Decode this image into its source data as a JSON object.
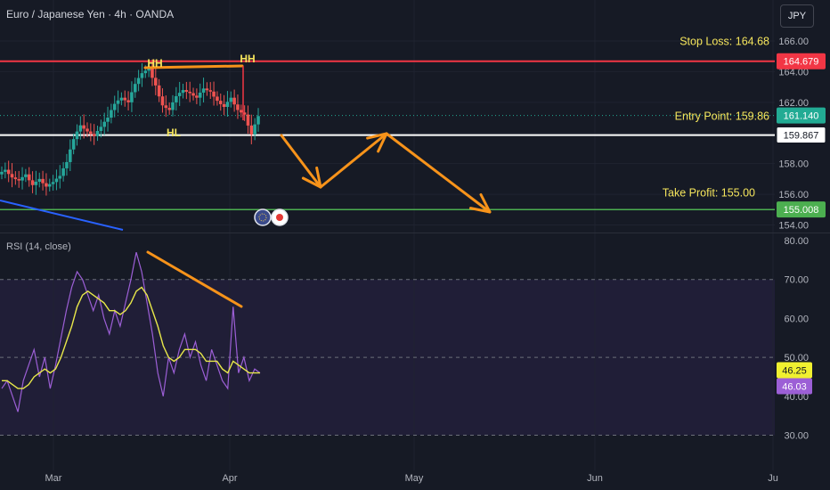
{
  "header": {
    "symbol_title": "Euro / Japanese Yen · 4h · OANDA",
    "currency_button": "JPY"
  },
  "price_pane": {
    "stop_loss_label": "Stop Loss: 164.68",
    "entry_label": "Entry Point: 159.86",
    "take_profit_label": "Take Profit: 155.00",
    "pattern_labels": [
      "HH",
      "HH",
      "HL"
    ]
  },
  "rsi_pane": {
    "title": "RSI (14, close)"
  },
  "colors": {
    "background": "#161a25",
    "stop_loss": "#f23645",
    "entry": "#ffffff",
    "take_profit": "#4caf50",
    "annotation": "#f7931a",
    "label_text": "#f5e55c",
    "rsi_line": "#9c5fd6",
    "rsi_ma": "#e8e84a",
    "current_price": "#22ab94",
    "trendline": "#2962ff"
  },
  "chart_data": [
    {
      "type": "candlestick",
      "title": "Euro / Japanese Yen · 4h · OANDA",
      "x_ticks": [
        "Mar",
        "Apr",
        "May",
        "Jun",
        "Ju"
      ],
      "y_ticks": [
        154.0,
        156.0,
        158.0,
        160.0,
        162.0,
        164.0,
        166.0
      ],
      "ylim": [
        153.5,
        167.4
      ],
      "price_tags": [
        {
          "label": "164.679",
          "value": 164.679,
          "color": "#f23645"
        },
        {
          "label": "161.140",
          "value": 161.14,
          "color": "#22ab94"
        },
        {
          "label": "159.867",
          "value": 159.867,
          "color": "#ffffff"
        },
        {
          "label": "155.008",
          "value": 155.008,
          "color": "#4caf50"
        }
      ],
      "levels": {
        "stop_loss": 164.68,
        "entry": 159.86,
        "take_profit": 155.0
      },
      "candles_close_approx": [
        157.6,
        157.1,
        156.9,
        157.3,
        156.6,
        157.0,
        156.5,
        156.8,
        157.2,
        158.1,
        159.6,
        160.5,
        160.1,
        159.8,
        160.4,
        161.0,
        161.9,
        162.3,
        162.0,
        163.2,
        163.9,
        164.2,
        163.1,
        161.8,
        161.5,
        162.4,
        162.8,
        162.6,
        162.3,
        162.9,
        162.7,
        162.1,
        161.7,
        162.3,
        161.5,
        161.2,
        159.9,
        161.1
      ],
      "projection_path": [
        {
          "date": "Apr 7",
          "price": 159.9
        },
        {
          "date": "Apr 14",
          "price": 156.6
        },
        {
          "date": "Apr 25",
          "price": 159.9
        },
        {
          "date": "May 10",
          "price": 155.0
        }
      ]
    },
    {
      "type": "line",
      "title": "RSI (14, close)",
      "y_ticks": [
        30.0,
        40.0,
        50.0,
        60.0,
        70.0,
        80.0
      ],
      "ylim": [
        28,
        82
      ],
      "band": [
        30,
        70
      ],
      "current_values": [
        {
          "label": "46.25",
          "value": 46.25,
          "series": "rsi-ma"
        },
        {
          "label": "46.03",
          "value": 46.03,
          "series": "rsi"
        }
      ],
      "series": [
        {
          "values": [
            42,
            44,
            40,
            36,
            44,
            48,
            52,
            45,
            50,
            42,
            48,
            55,
            62,
            68,
            72,
            70,
            66,
            62,
            66,
            60,
            56,
            62,
            58,
            64,
            70,
            77,
            72,
            64,
            56,
            46,
            40,
            50,
            46,
            52,
            56,
            50,
            54,
            48,
            44,
            52,
            48,
            44,
            42,
            63,
            46,
            50,
            44,
            47,
            46
          ]
        },
        {
          "values": [
            44,
            44,
            43,
            42,
            42,
            43,
            45,
            46,
            47,
            46,
            47,
            50,
            54,
            58,
            63,
            66,
            67,
            66,
            65,
            64,
            62,
            62,
            61,
            62,
            64,
            67,
            68,
            66,
            62,
            58,
            53,
            50,
            49,
            50,
            52,
            52,
            52,
            51,
            49,
            49,
            49,
            47,
            46,
            49,
            48,
            47,
            46,
            46,
            46
          ]
        }
      ]
    }
  ]
}
